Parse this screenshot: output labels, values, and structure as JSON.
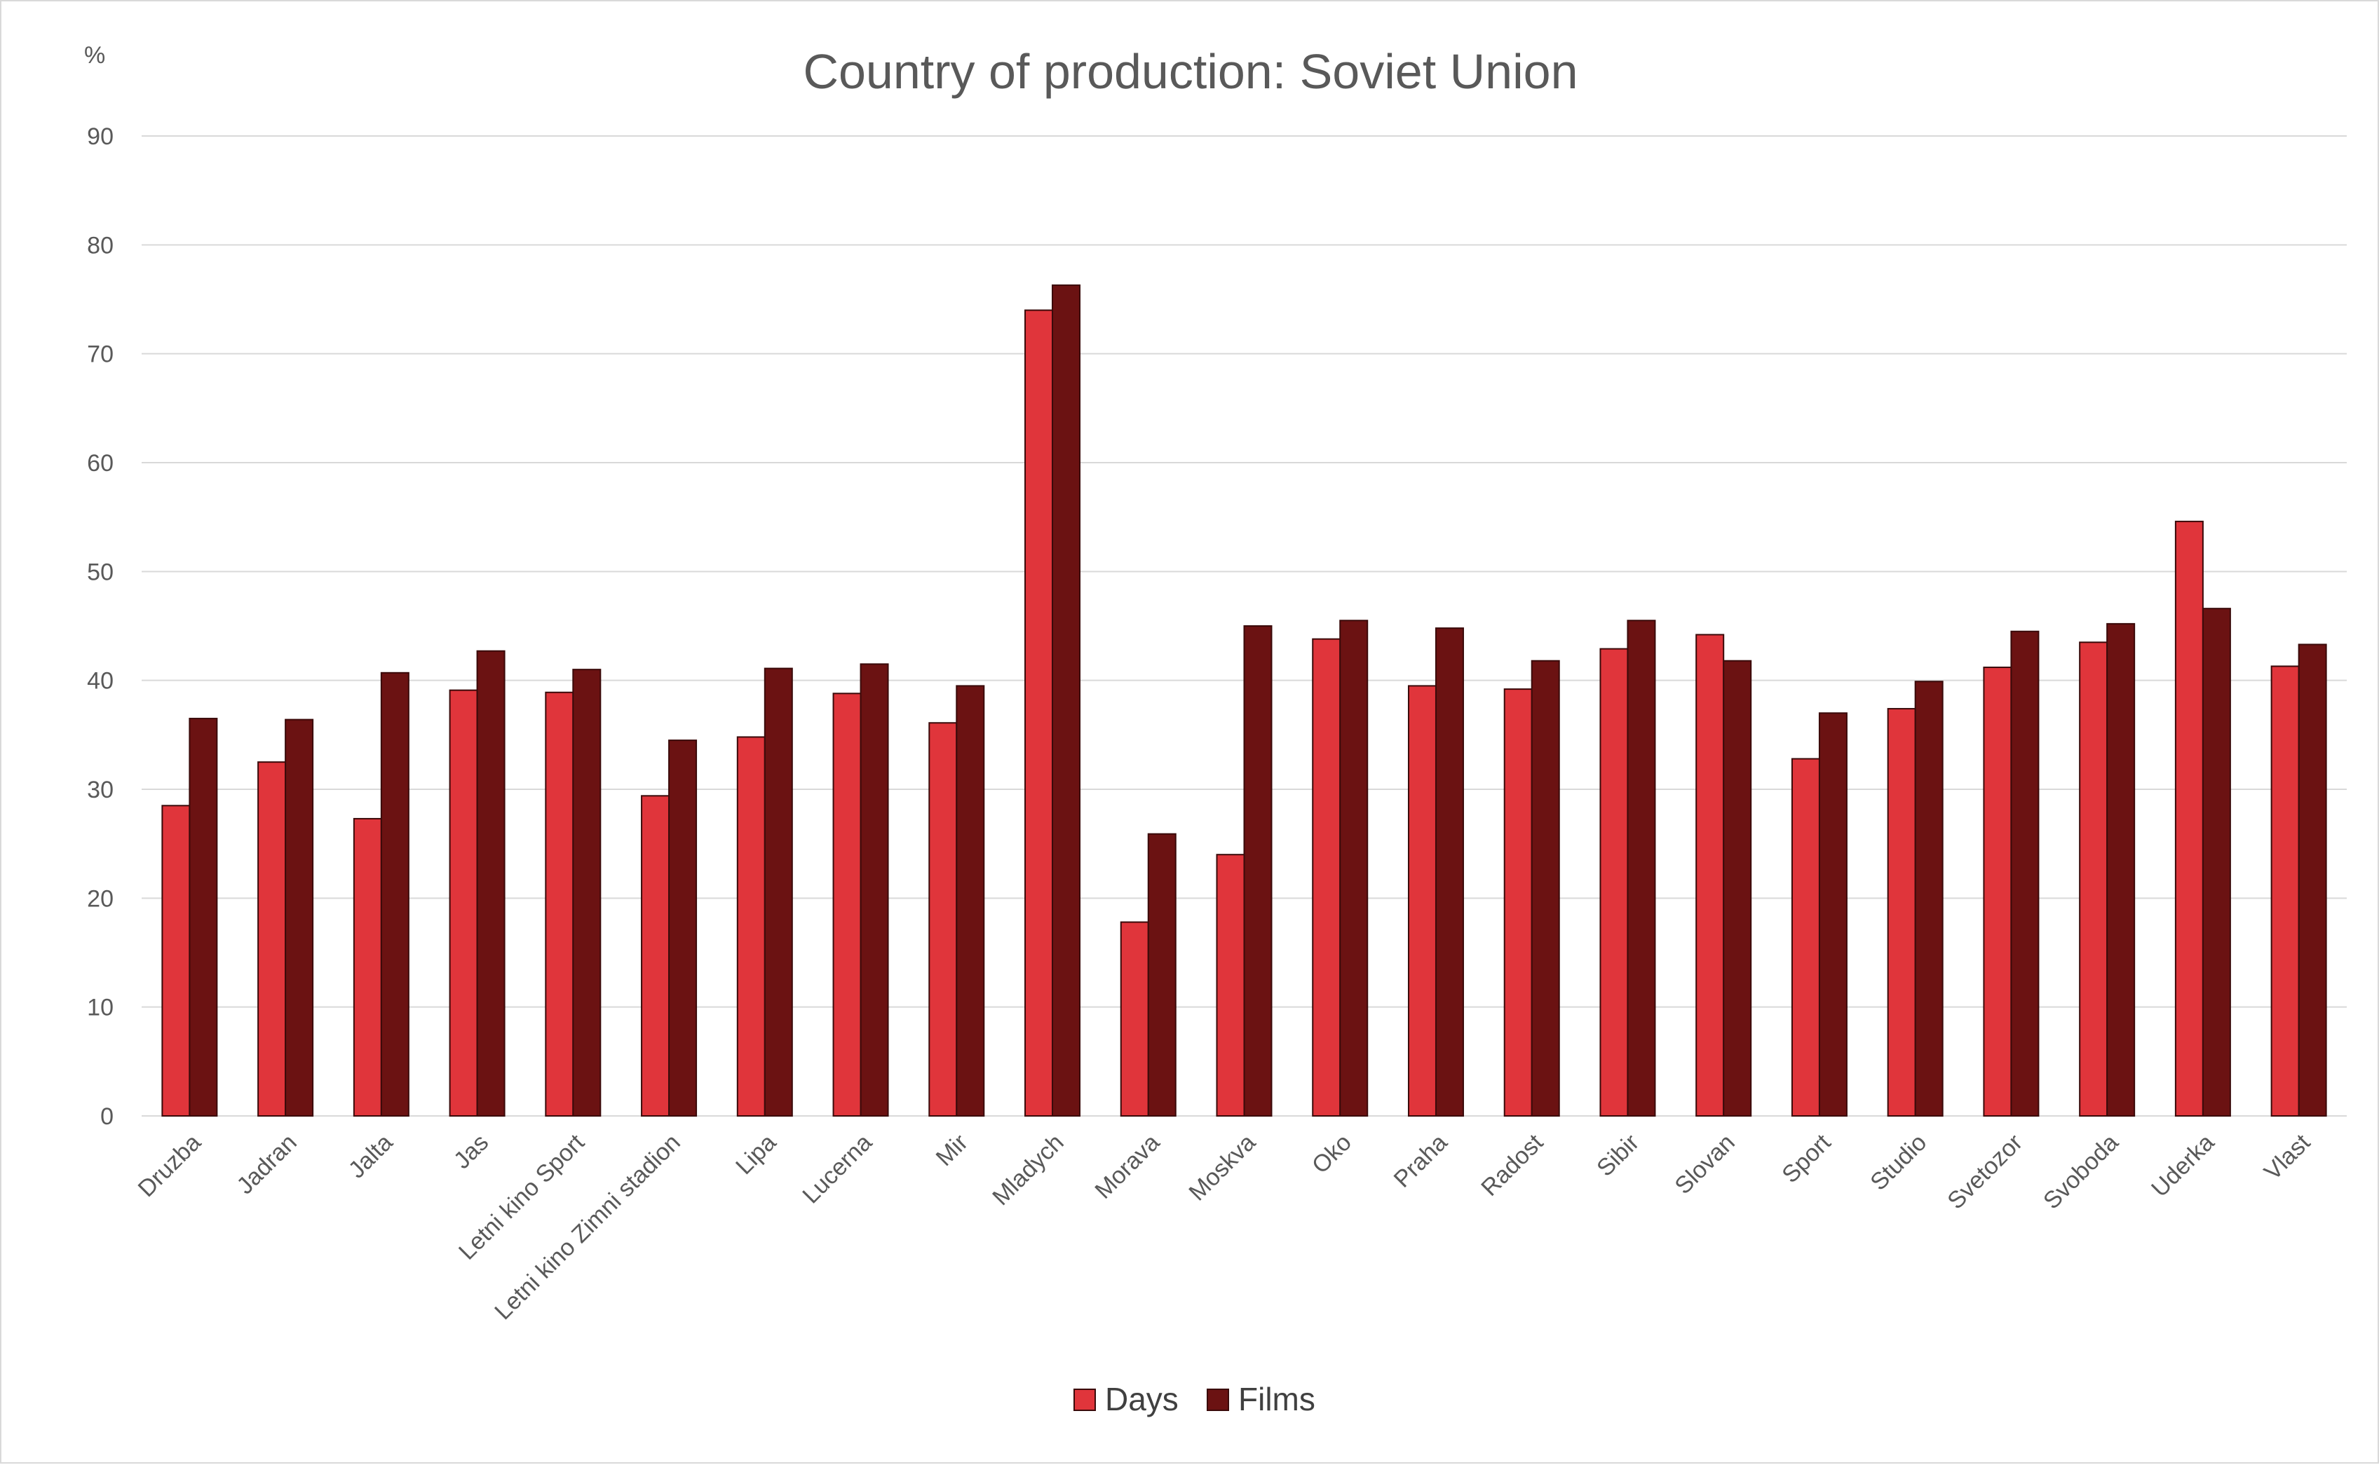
{
  "chart_data": {
    "type": "bar",
    "title": "Country of production: Soviet Union",
    "ylabel": "%",
    "xlabel": "",
    "ylim": [
      0,
      90
    ],
    "yticks": [
      0,
      10,
      20,
      30,
      40,
      50,
      60,
      70,
      80,
      90
    ],
    "grid": true,
    "legend_position": "bottom",
    "categories": [
      "Druzba",
      "Jadran",
      "Jalta",
      "Jas",
      "Letni kino Sport",
      "Letni kino Zimni stadion",
      "Lipa",
      "Lucerna",
      "Mir",
      "Mladych",
      "Morava",
      "Moskva",
      "Oko",
      "Praha",
      "Radost",
      "Sibir",
      "Slovan",
      "Sport",
      "Studio",
      "Svetozor",
      "Svoboda",
      "Uderka",
      "Vlast"
    ],
    "series": [
      {
        "name": "Days",
        "color": "#e0353b",
        "values": [
          28.5,
          32.5,
          27.3,
          39.1,
          38.9,
          29.4,
          34.8,
          38.8,
          36.1,
          74.0,
          17.8,
          24.0,
          43.8,
          39.5,
          39.2,
          42.9,
          44.2,
          32.8,
          37.4,
          41.2,
          43.5,
          54.6,
          41.3
        ]
      },
      {
        "name": "Films",
        "color": "#6b1212",
        "values": [
          36.5,
          36.4,
          40.7,
          42.7,
          41.0,
          34.5,
          41.1,
          41.5,
          39.5,
          76.3,
          25.9,
          45.0,
          45.5,
          44.8,
          41.8,
          45.5,
          41.8,
          37.0,
          39.9,
          44.5,
          45.2,
          46.6,
          43.3
        ]
      }
    ]
  }
}
